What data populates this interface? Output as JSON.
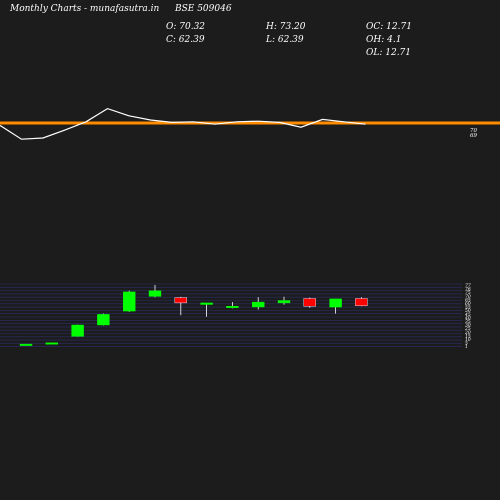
{
  "header": {
    "brand": "Monthly Charts",
    "site": "- munafasutra.in",
    "symbol": "BSE 509046",
    "open": "O: 70.32",
    "high": "H: 73.20",
    "oc": "OC: 12.71",
    "close": "C: 62.39",
    "low": "L: 62.39",
    "oh": "OH: 4.1",
    "ol": "OL: 12.71"
  },
  "colors": {
    "background": "#1c1c1c",
    "up": "#00ff00",
    "down": "#ff0000",
    "doji": "#ffffff",
    "ma_line": "#ff8c00",
    "momentum_line": "#ffffff",
    "grid": "#2b2b6b",
    "text": "#ffffff"
  },
  "chart_data": [
    {
      "type": "line",
      "panel": "momentum",
      "series": [
        {
          "kind": "reference",
          "values": [
            70,
            70,
            70,
            70,
            70,
            70,
            70,
            70,
            70,
            70,
            70,
            70,
            70,
            70,
            70,
            70,
            70,
            70,
            70,
            70
          ]
        },
        {
          "kind": "indicator",
          "values": [
            69.6,
            67.3,
            67.5,
            68.8,
            70.2,
            72.4,
            71.2,
            70.5,
            70.1,
            70.2,
            69.8,
            70.2,
            70.3,
            70.1,
            69.3,
            70.6,
            70.2,
            69.8
          ]
        }
      ],
      "y_tick_labels": [
        "70",
        "69"
      ]
    },
    {
      "type": "candlestick",
      "panel": "price",
      "candles": [
        {
          "o": 4.2,
          "h": 4.6,
          "l": 4.0,
          "c": 4.5
        },
        {
          "o": 5.0,
          "h": 6.3,
          "l": 4.8,
          "c": 6.2
        },
        {
          "o": 14.0,
          "h": 28.5,
          "l": 13.8,
          "c": 28.0
        },
        {
          "o": 28.0,
          "h": 42.0,
          "l": 27.5,
          "c": 41.0
        },
        {
          "o": 45.0,
          "h": 70.0,
          "l": 44.0,
          "c": 68.5
        },
        {
          "o": 63.0,
          "h": 77.0,
          "l": 62.0,
          "c": 70.0
        },
        {
          "o": 61.5,
          "h": 62.5,
          "l": 40.0,
          "c": 55.0
        },
        {
          "o": 53.0,
          "h": 55.0,
          "l": 38.0,
          "c": 55.0
        },
        {
          "o": 50.0,
          "h": 56.0,
          "l": 48.5,
          "c": 51.0
        },
        {
          "o": 50.0,
          "h": 62.0,
          "l": 47.0,
          "c": 56.0
        },
        {
          "o": 55.0,
          "h": 62.5,
          "l": 53.0,
          "c": 58.0
        },
        {
          "o": 60.5,
          "h": 61.5,
          "l": 49.0,
          "c": 51.0
        },
        {
          "o": 50.0,
          "h": 60.0,
          "l": 42.0,
          "c": 60.0
        },
        {
          "o": 60.5,
          "h": 62.0,
          "l": 51.0,
          "c": 51.5
        }
      ],
      "y_tick_labels": [
        "77",
        "76",
        "75",
        "70",
        "65",
        "60",
        "55",
        "50",
        "45",
        "40",
        "35",
        "30",
        "25",
        "20",
        "15",
        "10",
        "5",
        "1"
      ]
    }
  ]
}
